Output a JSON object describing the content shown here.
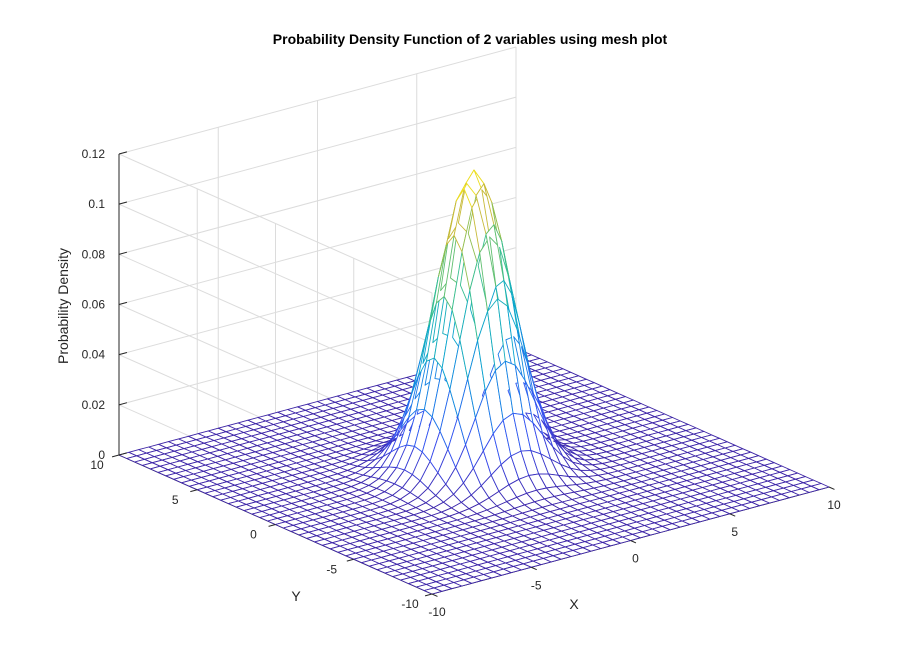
{
  "chart_data": {
    "type": "mesh",
    "title": "Probability Density Function of 2 variables using mesh plot",
    "xlabel": "X",
    "ylabel": "Y",
    "zlabel": "Probability Density",
    "x_range": [
      -10,
      10
    ],
    "y_range": [
      -10,
      10
    ],
    "zlim": [
      0,
      0.12
    ],
    "x_ticks": [
      "-10",
      "-5",
      "0",
      "5",
      "10"
    ],
    "y_ticks": [
      "-10",
      "-5",
      "0",
      "5",
      "10"
    ],
    "z_ticks": [
      "0",
      "0.02",
      "0.04",
      "0.06",
      "0.08",
      "0.1",
      "0.12"
    ],
    "grid_step": 0.5,
    "distribution": {
      "mean_x": 0,
      "mean_y": 0,
      "sigma_x": 1.5,
      "sigma_y": 1.5,
      "peak_value": 0.12
    },
    "colormap": "parula",
    "grid": true
  }
}
